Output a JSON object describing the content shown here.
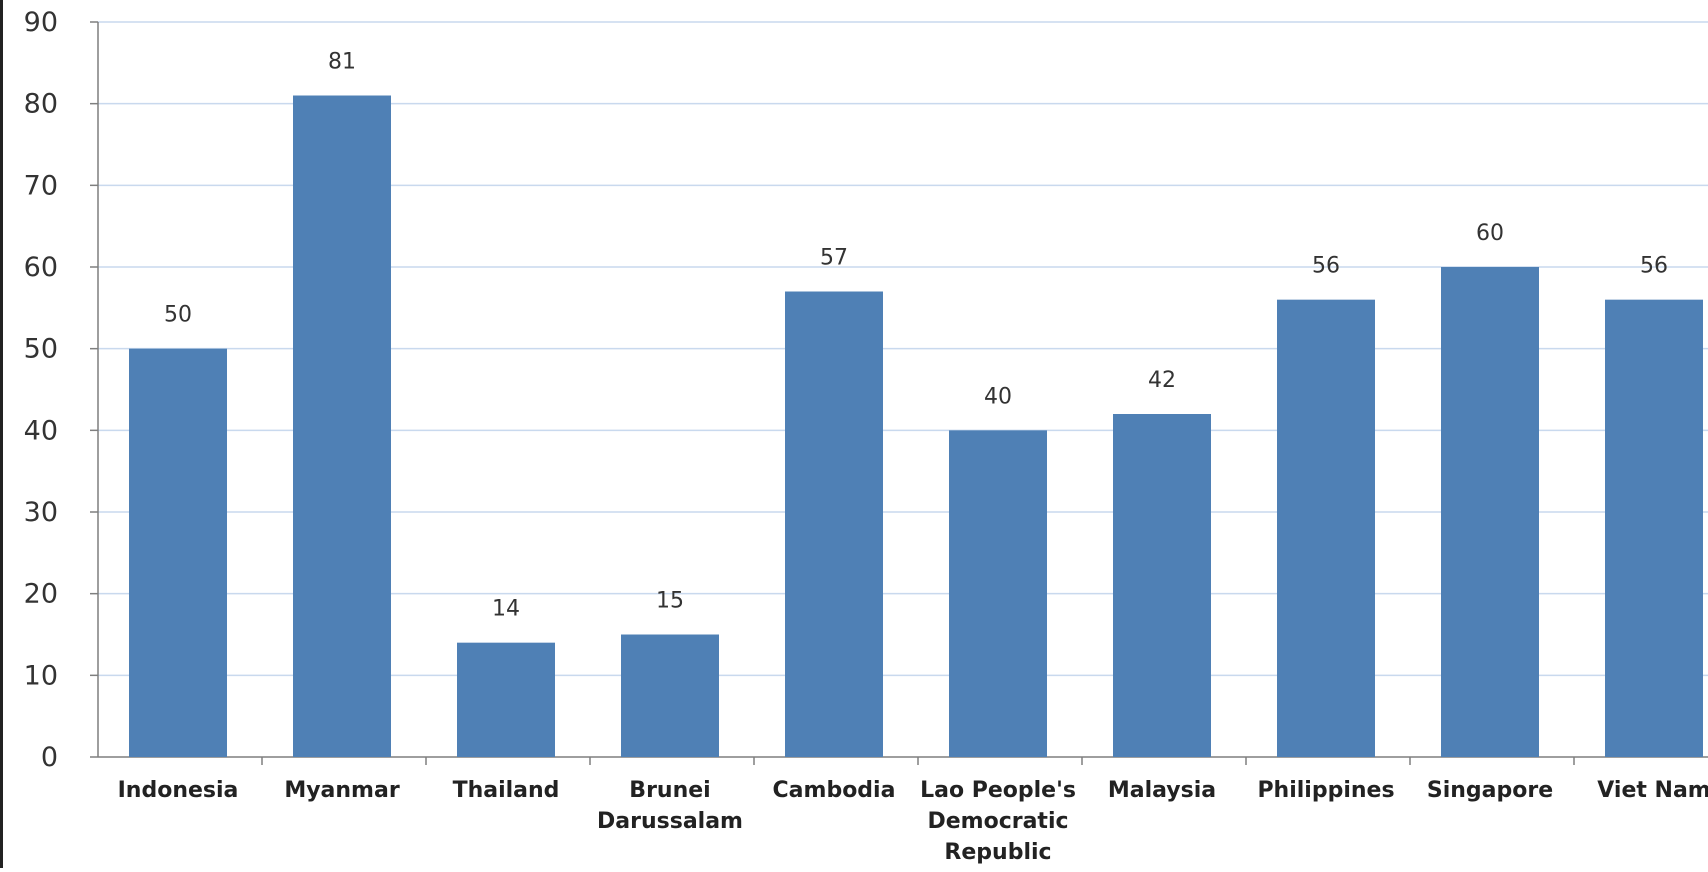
{
  "chart_data": {
    "type": "bar",
    "title": "",
    "xlabel": "",
    "ylabel": "",
    "ylim": [
      0,
      90
    ],
    "yticks": [
      0,
      10,
      20,
      30,
      40,
      50,
      60,
      70,
      80,
      90
    ],
    "grid": true,
    "legend": "none",
    "categories": [
      [
        "Indonesia"
      ],
      [
        "Myanmar"
      ],
      [
        "Thailand"
      ],
      [
        "Brunei",
        "Darussalam"
      ],
      [
        "Cambodia"
      ],
      [
        "Lao People's",
        "Democratic",
        "Republic"
      ],
      [
        "Malaysia"
      ],
      [
        "Philippines"
      ],
      [
        "Singapore"
      ],
      [
        "Viet Nam"
      ]
    ],
    "values": [
      50,
      81,
      14,
      15,
      57,
      40,
      42,
      56,
      60,
      56
    ],
    "data_labels": [
      "50",
      "81",
      "14",
      "15",
      "57",
      "40",
      "42",
      "56",
      "60",
      "56"
    ],
    "colors": {
      "bar": "#4f80b5",
      "grid": "#c9d9ee",
      "axis": "#7f7f7f",
      "frame": "#222222"
    }
  }
}
